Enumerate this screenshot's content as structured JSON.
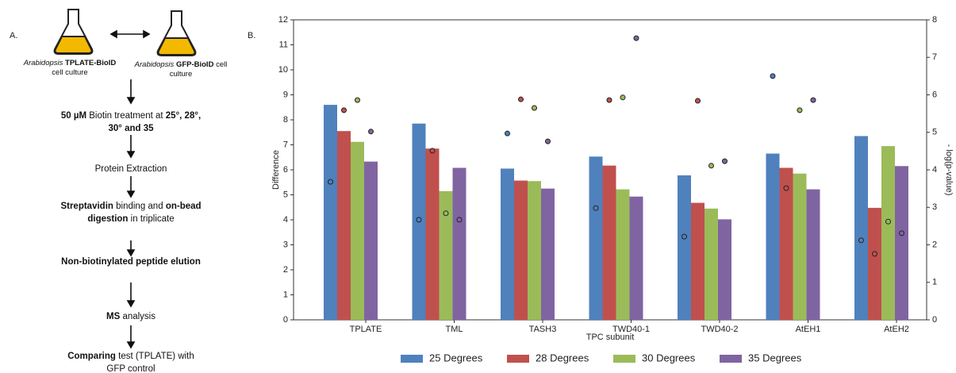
{
  "flowchart": {
    "panel_label": "A.",
    "cultures": [
      {
        "runs": [
          {
            "text": "Arabidopsis",
            "i": true
          },
          {
            "text": "TPLATE-BioID",
            "b": true
          },
          {
            "text": "cell culture"
          }
        ]
      },
      {
        "runs": [
          {
            "text": "Arabidopsis",
            "i": true
          },
          {
            "text": "GFP-BioID",
            "b": true
          },
          {
            "text": "cell culture"
          }
        ]
      }
    ],
    "steps": [
      {
        "runs": [
          {
            "text": "50 µM",
            "b": true
          },
          {
            "text": "Biotin treatment at"
          },
          {
            "text": "25°, 28°, 30° and 35",
            "b": true
          }
        ]
      },
      {
        "runs": [
          {
            "text": "Protein Extraction"
          }
        ]
      },
      {
        "runs": [
          {
            "text": "Streptavidin",
            "b": true
          },
          {
            "text": "binding and"
          },
          {
            "text": "on-bead digestion",
            "b": true
          },
          {
            "text": "in triplicate"
          }
        ]
      },
      {
        "runs": [
          {
            "text": "Non-biotinylated peptide elution",
            "b": true
          }
        ]
      },
      {
        "runs": [
          {
            "text": "MS",
            "b": true
          },
          {
            "text": "analysis"
          }
        ]
      },
      {
        "runs": [
          {
            "text": "Comparing",
            "b": true
          },
          {
            "text": "test (TPLATE) with GFP control"
          }
        ]
      }
    ]
  },
  "chart_data": {
    "type": "bar",
    "panel_label": "B.",
    "x_label": "TPC subunit",
    "y_label": "Difference",
    "y2_label": "- log(p-value)",
    "categories": [
      "TPLATE",
      "TML",
      "TASH3",
      "TWD40-1",
      "TWD40-2",
      "AtEH1",
      "AtEH2"
    ],
    "ylim": [
      0,
      12
    ],
    "yticks": [
      0,
      1,
      2,
      3,
      4,
      5,
      6,
      7,
      8,
      9,
      10,
      11,
      12
    ],
    "y2lim": [
      0,
      8
    ],
    "y2ticks": [
      0,
      1,
      2,
      3,
      4,
      5,
      6,
      7,
      8
    ],
    "legend": "below",
    "series": [
      {
        "name": "25 Degrees",
        "color": "#4f81bd",
        "values": [
          8.6,
          7.85,
          6.05,
          6.53,
          5.78,
          6.65,
          7.35
        ],
        "y2_values": [
          3.68,
          2.67,
          4.97,
          2.98,
          2.22,
          6.5,
          2.12
        ]
      },
      {
        "name": "28 Degrees",
        "color": "#c0504d",
        "values": [
          7.55,
          6.85,
          5.57,
          6.17,
          4.68,
          6.08,
          4.48
        ],
        "y2_values": [
          5.59,
          4.51,
          5.88,
          5.86,
          5.84,
          3.51,
          1.76
        ]
      },
      {
        "name": "30 Degrees",
        "color": "#9bbb59",
        "values": [
          7.12,
          5.15,
          5.55,
          5.22,
          4.45,
          5.85,
          6.95
        ],
        "y2_values": [
          5.86,
          2.84,
          5.65,
          5.93,
          4.11,
          5.59,
          2.62
        ]
      },
      {
        "name": "35 Degrees",
        "color": "#8064a2",
        "values": [
          6.33,
          6.08,
          5.25,
          4.93,
          4.02,
          5.22,
          6.15
        ],
        "y2_values": [
          5.02,
          2.67,
          4.76,
          7.51,
          4.23,
          5.86,
          2.31
        ]
      }
    ]
  }
}
